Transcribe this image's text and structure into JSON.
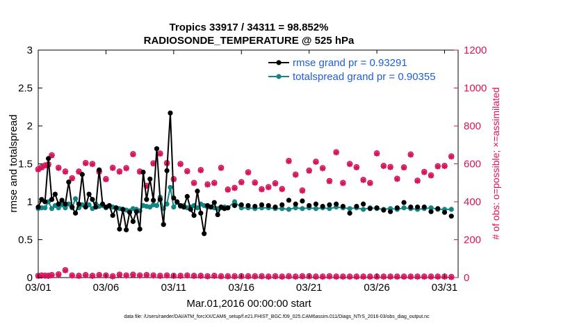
{
  "chart_data": {
    "type": "line",
    "title": "Tropics 33917 / 34311 = 98.852%",
    "subtitle": "RADIOSONDE_TEMPERATURE @ 525 hPa",
    "xlabel": "Mar.01,2016 00:00:00 start",
    "ylabel": "rmse and totalspread",
    "ylabel_right": "# of obs: o=possible; ×=assimilated",
    "footnote": "data file: /Users/raeder/DAI/ATM_forcXX/CAM6_setup/f.e21.FHIST_BGC.f09_025.CAM6assim.011/Diags_NTrS_2016-03/obs_diag_output.nc",
    "xlim": [
      0,
      31
    ],
    "ylim": [
      0,
      3
    ],
    "ylim_right": [
      0,
      1200
    ],
    "x_ticks": [
      {
        "value": 0,
        "label": "03/01"
      },
      {
        "value": 5,
        "label": "03/06"
      },
      {
        "value": 10,
        "label": "03/11"
      },
      {
        "value": 15,
        "label": "03/16"
      },
      {
        "value": 20,
        "label": "03/21"
      },
      {
        "value": 25,
        "label": "03/26"
      },
      {
        "value": 30,
        "label": "03/31"
      }
    ],
    "y_ticks": [
      {
        "value": 0,
        "label": "0"
      },
      {
        "value": 0.5,
        "label": "0.5"
      },
      {
        "value": 1,
        "label": "1"
      },
      {
        "value": 1.5,
        "label": "1.5"
      },
      {
        "value": 2,
        "label": "2"
      },
      {
        "value": 2.5,
        "label": "2.5"
      },
      {
        "value": 3,
        "label": "3"
      }
    ],
    "y_ticks_right": [
      {
        "value": 0,
        "label": "0"
      },
      {
        "value": 200,
        "label": "200"
      },
      {
        "value": 400,
        "label": "400"
      },
      {
        "value": 600,
        "label": "600"
      },
      {
        "value": 800,
        "label": "800"
      },
      {
        "value": 1000,
        "label": "1000"
      },
      {
        "value": 1200,
        "label": "1200"
      }
    ],
    "legend": [
      {
        "label": "rmse grand pr = 0.93291",
        "color": "#000000"
      },
      {
        "label": "totalspread grand pr = 0.90355",
        "color": "#138585"
      }
    ],
    "colors": {
      "rmse": "#000000",
      "spread": "#138585",
      "obs": "#d6135a",
      "legend_text": "#1f5ce0"
    },
    "series": [
      {
        "name": "rmse",
        "axis": "left",
        "x": [
          0.0,
          0.25,
          0.5,
          0.75,
          1.0,
          1.25,
          1.5,
          1.75,
          2.0,
          2.25,
          2.5,
          2.75,
          3.0,
          3.25,
          3.5,
          3.75,
          4.0,
          4.25,
          4.5,
          4.75,
          5.0,
          5.25,
          5.5,
          5.75,
          6.0,
          6.25,
          6.5,
          6.75,
          7.0,
          7.25,
          7.5,
          7.75,
          8.0,
          8.25,
          8.5,
          8.75,
          9.0,
          9.25,
          9.5,
          9.75,
          10.0,
          10.25,
          10.5,
          10.75,
          11.0,
          11.25,
          11.5,
          11.75,
          12.0,
          12.25,
          12.5,
          12.75,
          13.0,
          13.25,
          13.5,
          13.75,
          14.0
        ],
        "values": [
          0.93,
          1.03,
          1.0,
          1.57,
          1.03,
          1.1,
          0.97,
          1.02,
          0.97,
          1.26,
          0.93,
          0.85,
          0.97,
          1.36,
          0.93,
          1.1,
          1.03,
          0.93,
          1.42,
          0.97,
          0.93,
          0.95,
          0.82,
          0.92,
          0.64,
          0.9,
          0.63,
          0.86,
          0.74,
          0.87,
          0.64,
          1.39,
          1.03,
          1.3,
          1.02,
          1.7,
          1.03,
          0.7,
          1.41,
          2.17,
          1.05,
          1.0,
          0.95,
          0.93,
          1.07,
          0.9,
          0.82,
          1.14,
          0.85,
          0.58,
          0.95,
          0.93,
          0.99,
          0.83,
          0.93,
          0.91,
          0.92
        ]
      },
      {
        "name": "rmse_sparse",
        "axis": "left",
        "x": [
          14.5,
          15.0,
          15.5,
          16.0,
          16.5,
          17.0,
          17.5,
          18.0,
          18.5,
          19.0,
          19.5,
          20.0,
          20.5,
          21.0,
          21.5,
          22.0,
          22.5,
          23.0,
          23.5,
          24.0,
          24.5,
          25.0,
          25.5,
          26.0,
          26.5,
          27.0,
          27.5,
          28.0,
          28.5,
          29.0,
          29.5,
          30.0,
          30.5
        ],
        "values": [
          0.95,
          0.96,
          0.95,
          0.94,
          0.96,
          0.95,
          0.93,
          0.96,
          1.02,
          0.97,
          1.01,
          0.95,
          0.97,
          0.94,
          0.96,
          0.97,
          0.94,
          0.85,
          0.94,
          0.97,
          0.91,
          0.92,
          0.89,
          0.87,
          0.92,
          0.99,
          0.93,
          0.93,
          0.93,
          0.87,
          0.91,
          0.86,
          0.81
        ]
      },
      {
        "name": "totalspread",
        "axis": "left",
        "x": [
          0.0,
          0.25,
          0.5,
          0.75,
          1.0,
          1.25,
          1.5,
          1.75,
          2.0,
          2.25,
          2.5,
          2.75,
          3.0,
          3.25,
          3.5,
          3.75,
          4.0,
          4.25,
          4.5,
          4.75,
          5.0,
          5.25,
          5.5,
          5.75,
          6.0,
          6.25,
          6.5,
          6.75,
          7.0,
          7.25,
          7.5,
          7.75,
          8.0,
          8.25,
          8.5,
          8.75,
          9.0,
          9.25,
          9.5,
          9.75,
          10.0,
          10.25,
          10.5,
          10.75,
          11.0,
          11.25,
          11.5,
          11.75,
          12.0,
          12.25,
          12.5,
          12.75,
          13.0,
          13.25,
          13.5,
          13.75,
          14.0,
          14.5,
          15.0,
          15.5,
          16.0,
          16.5,
          17.0,
          17.5,
          18.0,
          18.5,
          19.0,
          19.5,
          20.0,
          20.5,
          21.0,
          21.5,
          22.0,
          22.5,
          23.0,
          23.5,
          24.0,
          24.5,
          25.0,
          25.5,
          26.0,
          26.5,
          27.0,
          27.5,
          28.0,
          28.5,
          29.0,
          29.5,
          30.0,
          30.5
        ],
        "values": [
          0.91,
          0.92,
          0.92,
          1.0,
          0.91,
          0.95,
          0.92,
          0.96,
          0.92,
          0.97,
          0.92,
          1.04,
          0.92,
          0.96,
          0.94,
          0.96,
          0.91,
          0.97,
          0.94,
          0.95,
          0.92,
          0.94,
          0.93,
          0.92,
          0.91,
          0.9,
          0.89,
          0.88,
          0.91,
          0.9,
          0.88,
          0.95,
          0.94,
          0.93,
          0.96,
          0.95,
          1.06,
          0.91,
          0.97,
          1.19,
          0.93,
          0.99,
          0.94,
          0.95,
          0.92,
          0.93,
          0.95,
          0.92,
          0.97,
          0.95,
          0.93,
          0.93,
          0.92,
          0.91,
          0.92,
          0.93,
          0.92,
          1.0,
          0.92,
          0.92,
          0.91,
          0.92,
          0.92,
          0.91,
          0.91,
          0.9,
          0.92,
          0.91,
          0.92,
          0.91,
          0.92,
          0.91,
          0.93,
          0.92,
          0.91,
          0.92,
          0.9,
          0.92,
          0.91,
          0.9,
          0.91,
          0.9,
          0.92,
          0.91,
          0.9,
          0.91,
          0.92,
          0.9,
          0.9,
          0.9
        ]
      },
      {
        "name": "obs_possible",
        "axis": "right",
        "x": [
          0.0,
          0.25,
          0.5,
          0.75,
          1.0,
          1.5,
          2.0,
          2.5,
          3.0,
          3.5,
          4.0,
          4.5,
          5.0,
          5.5,
          6.0,
          6.5,
          7.0,
          7.5,
          8.0,
          8.5,
          9.0,
          9.5,
          10.0,
          10.5,
          11.0,
          11.5,
          12.0,
          12.5,
          13.0,
          13.5,
          14.0,
          14.5,
          15.0,
          15.5,
          16.0,
          16.5,
          17.0,
          17.5,
          18.0,
          18.5,
          19.0,
          19.5,
          20.0,
          20.5,
          21.0,
          21.5,
          22.0,
          22.5,
          23.0,
          23.5,
          24.0,
          24.5,
          25.0,
          25.5,
          26.0,
          26.5,
          27.0,
          27.5,
          28.0,
          28.5,
          29.0,
          29.5,
          30.0,
          30.5
        ],
        "values": [
          572,
          582,
          592,
          598,
          646,
          580,
          560,
          525,
          560,
          605,
          600,
          560,
          520,
          580,
          560,
          578,
          652,
          560,
          485,
          603,
          655,
          605,
          520,
          600,
          562,
          500,
          568,
          492,
          500,
          580,
          465,
          474,
          504,
          556,
          502,
          467,
          478,
          498,
          468,
          616,
          544,
          460,
          565,
          612,
          578,
          510,
          662,
          500,
          600,
          583,
          516,
          500,
          656,
          590,
          584,
          522,
          582,
          650,
          512,
          558,
          540,
          588,
          590,
          640
        ]
      },
      {
        "name": "obs_assimilated",
        "axis": "right",
        "x": [
          0.0,
          0.25,
          0.5,
          0.75,
          1.0,
          1.5,
          2.0,
          2.5,
          3.0,
          3.5,
          4.0,
          4.5,
          5.0,
          5.5,
          6.0,
          6.5,
          7.0,
          7.5,
          8.0,
          8.5,
          9.0,
          9.5,
          10.0,
          10.5,
          11.0,
          11.5,
          12.0,
          12.5,
          13.0,
          13.5,
          14.0,
          14.5,
          15.0,
          15.5,
          16.0,
          16.5,
          17.0,
          17.5,
          18.0,
          18.5,
          19.0,
          19.5,
          20.0,
          20.5,
          21.0,
          21.5,
          22.0,
          22.5,
          23.0,
          23.5,
          24.0,
          24.5,
          25.0,
          25.5,
          26.0,
          26.5,
          27.0,
          27.5,
          28.0,
          28.5,
          29.0,
          29.5,
          30.0,
          30.5
        ],
        "values": [
          570,
          580,
          590,
          596,
          644,
          578,
          558,
          523,
          558,
          603,
          598,
          558,
          518,
          578,
          558,
          576,
          650,
          558,
          483,
          601,
          653,
          603,
          518,
          598,
          560,
          498,
          566,
          490,
          498,
          578,
          463,
          472,
          502,
          554,
          500,
          465,
          476,
          496,
          466,
          614,
          542,
          458,
          563,
          610,
          576,
          508,
          660,
          498,
          598,
          581,
          514,
          498,
          654,
          588,
          582,
          520,
          580,
          648,
          510,
          556,
          538,
          586,
          588,
          638
        ]
      },
      {
        "name": "obs_possible_low",
        "axis": "right",
        "x": [
          0.0,
          0.25,
          0.5,
          0.75,
          1.0,
          1.5,
          2.0,
          2.5,
          3.0,
          3.5,
          4.0,
          4.5,
          5.0,
          5.5,
          6.0,
          6.5,
          7.0,
          7.5,
          8.0,
          8.5,
          9.0,
          9.5,
          10.0,
          10.5,
          11.0,
          11.5,
          12.0,
          12.5,
          13.0,
          13.5,
          14.0,
          14.5,
          15.0,
          15.5,
          16.0,
          16.5,
          17.0,
          17.5,
          18.0,
          18.5,
          19.0,
          19.5,
          20.0,
          20.5,
          21.0,
          21.5,
          22.0,
          22.5,
          23.0,
          23.5,
          24.0,
          24.5,
          25.0,
          25.5,
          26.0,
          26.5,
          27.0,
          27.5,
          28.0,
          28.5,
          29.0,
          29.5,
          30.0,
          30.5
        ],
        "values": [
          10,
          12,
          11,
          10,
          14,
          18,
          40,
          12,
          10,
          14,
          10,
          14,
          12,
          8,
          16,
          12,
          16,
          12,
          14,
          12,
          10,
          12,
          10,
          10,
          12,
          10,
          10,
          8,
          10,
          8,
          8,
          8,
          8,
          8,
          8,
          8,
          6,
          8,
          6,
          8,
          6,
          8,
          8,
          6,
          6,
          8,
          6,
          6,
          6,
          6,
          6,
          6,
          6,
          6,
          6,
          6,
          6,
          6,
          6,
          6,
          6,
          6,
          6,
          4
        ]
      },
      {
        "name": "obs_assimilated_low",
        "axis": "right",
        "x": [
          0.0,
          0.25,
          0.5,
          0.75,
          1.0,
          1.5,
          2.0,
          2.5,
          3.0,
          3.5,
          4.0,
          4.5,
          5.0,
          5.5,
          6.0,
          6.5,
          7.0,
          7.5,
          8.0,
          8.5,
          9.0,
          9.5,
          10.0,
          10.5,
          11.0,
          11.5,
          12.0,
          12.5,
          13.0,
          13.5,
          14.0,
          14.5,
          15.0,
          15.5,
          16.0,
          16.5,
          17.0,
          17.5,
          18.0,
          18.5,
          19.0,
          19.5,
          20.0,
          20.5,
          21.0,
          21.5,
          22.0,
          22.5,
          23.0,
          23.5,
          24.0,
          24.5,
          25.0,
          25.5,
          26.0,
          26.5,
          27.0,
          27.5,
          28.0,
          28.5,
          29.0,
          29.5,
          30.0,
          30.5
        ],
        "values": [
          8,
          10,
          9,
          8,
          12,
          16,
          38,
          10,
          8,
          12,
          8,
          12,
          10,
          6,
          14,
          10,
          14,
          10,
          12,
          10,
          8,
          10,
          8,
          8,
          10,
          8,
          8,
          6,
          8,
          6,
          6,
          6,
          6,
          6,
          6,
          6,
          4,
          6,
          4,
          6,
          4,
          6,
          6,
          4,
          4,
          6,
          4,
          4,
          4,
          4,
          4,
          4,
          4,
          4,
          4,
          4,
          4,
          4,
          4,
          4,
          4,
          4,
          4,
          2
        ]
      }
    ]
  }
}
